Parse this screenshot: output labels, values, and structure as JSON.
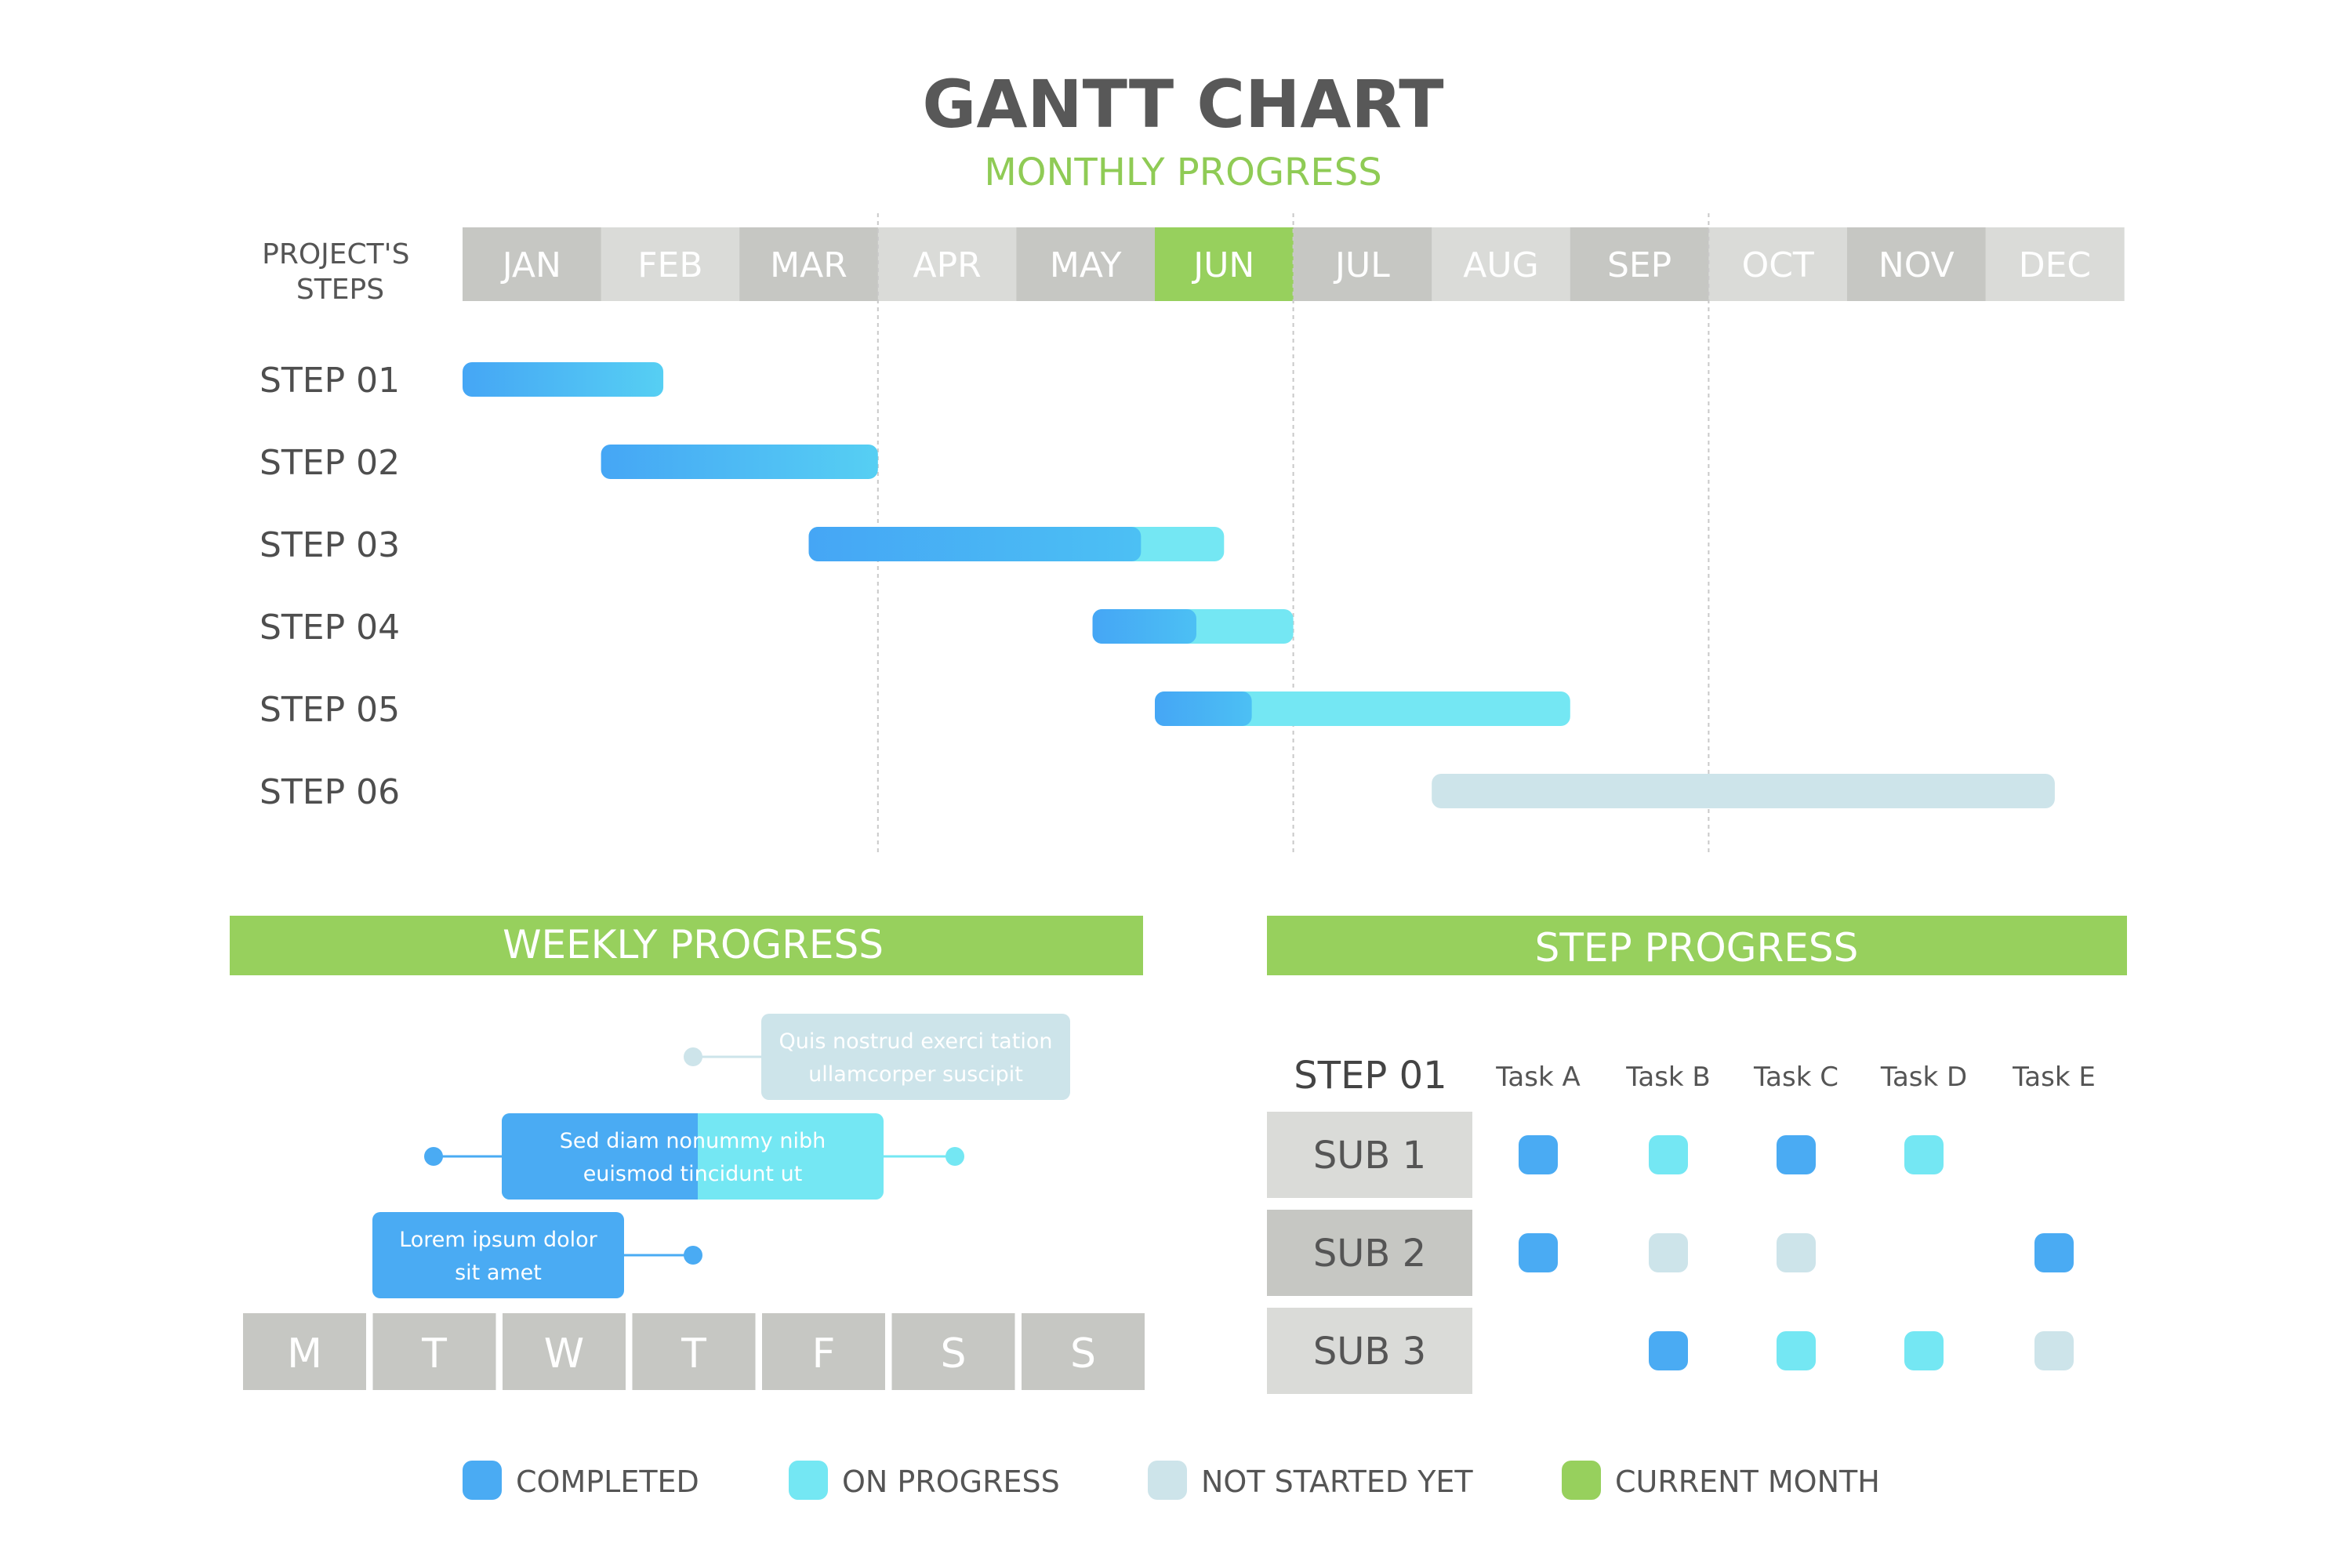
{
  "title": "GANTT CHART",
  "subtitle": "MONTHLY PROGRESS",
  "steps_header": [
    "PROJECT'S",
    "STEPS"
  ],
  "months": [
    "JAN",
    "FEB",
    "MAR",
    "APR",
    "MAY",
    "JUN",
    "JUL",
    "AUG",
    "SEP",
    "OCT",
    "NOV",
    "DEC"
  ],
  "current_month": "JUN",
  "colors": {
    "completed": "#4aabf3",
    "on_progress": "#74e7f3",
    "not_started": "#cde4ea",
    "current_month": "#97d05d",
    "header_dark": "#c6c7c3",
    "header_light": "#dadbd8",
    "text": "#555555"
  },
  "chart_data": {
    "type": "gantt",
    "x_unit": "month (0 = start of JAN, 12 = end of DEC)",
    "tasks": [
      {
        "label": "STEP 01",
        "start": 0.0,
        "end": 1.45,
        "completed_until": 1.45,
        "status": "completed"
      },
      {
        "label": "STEP 02",
        "start": 1.0,
        "end": 3.0,
        "completed_until": 3.0,
        "status": "completed"
      },
      {
        "label": "STEP 03",
        "start": 2.5,
        "end": 5.5,
        "completed_until": 4.9,
        "status": "on progress"
      },
      {
        "label": "STEP 04",
        "start": 4.55,
        "end": 6.0,
        "completed_until": 5.3,
        "status": "on progress"
      },
      {
        "label": "STEP 05",
        "start": 5.0,
        "end": 8.0,
        "completed_until": 5.7,
        "status": "on progress"
      },
      {
        "label": "STEP 06",
        "start": 7.0,
        "end": 11.5,
        "completed_until": 7.0,
        "status": "not started yet"
      }
    ]
  },
  "weekly": {
    "header": "WEEKLY PROGRESS",
    "days": [
      "M",
      "T",
      "W",
      "T",
      "F",
      "S",
      "S"
    ],
    "items": [
      {
        "lines": [
          "Quis nostrud exerci tation",
          "ullamcorper suscipit"
        ],
        "status": "not_started"
      },
      {
        "lines": [
          "Sed diam nonummy nibh",
          "euismod tincidunt ut"
        ],
        "status": "on_progress"
      },
      {
        "lines": [
          "Lorem ipsum dolor",
          "sit amet"
        ],
        "status": "completed"
      }
    ]
  },
  "step_progress": {
    "header": "STEP PROGRESS",
    "step_label": "STEP 01",
    "tasks": [
      "Task A",
      "Task B",
      "Task C",
      "Task D",
      "Task E"
    ],
    "rows": [
      {
        "label": "SUB 1",
        "cells": [
          "completed",
          "on_progress",
          "completed",
          "on_progress",
          null
        ]
      },
      {
        "label": "SUB 2",
        "cells": [
          "completed",
          "not_started",
          "not_started",
          null,
          "completed"
        ]
      },
      {
        "label": "SUB 3",
        "cells": [
          null,
          "completed",
          "on_progress",
          "on_progress",
          "not_started"
        ]
      }
    ]
  },
  "legend": [
    {
      "label": "COMPLETED",
      "key": "completed"
    },
    {
      "label": "ON PROGRESS",
      "key": "on_progress"
    },
    {
      "label": "NOT STARTED YET",
      "key": "not_started"
    },
    {
      "label": "CURRENT MONTH",
      "key": "current_month"
    }
  ]
}
